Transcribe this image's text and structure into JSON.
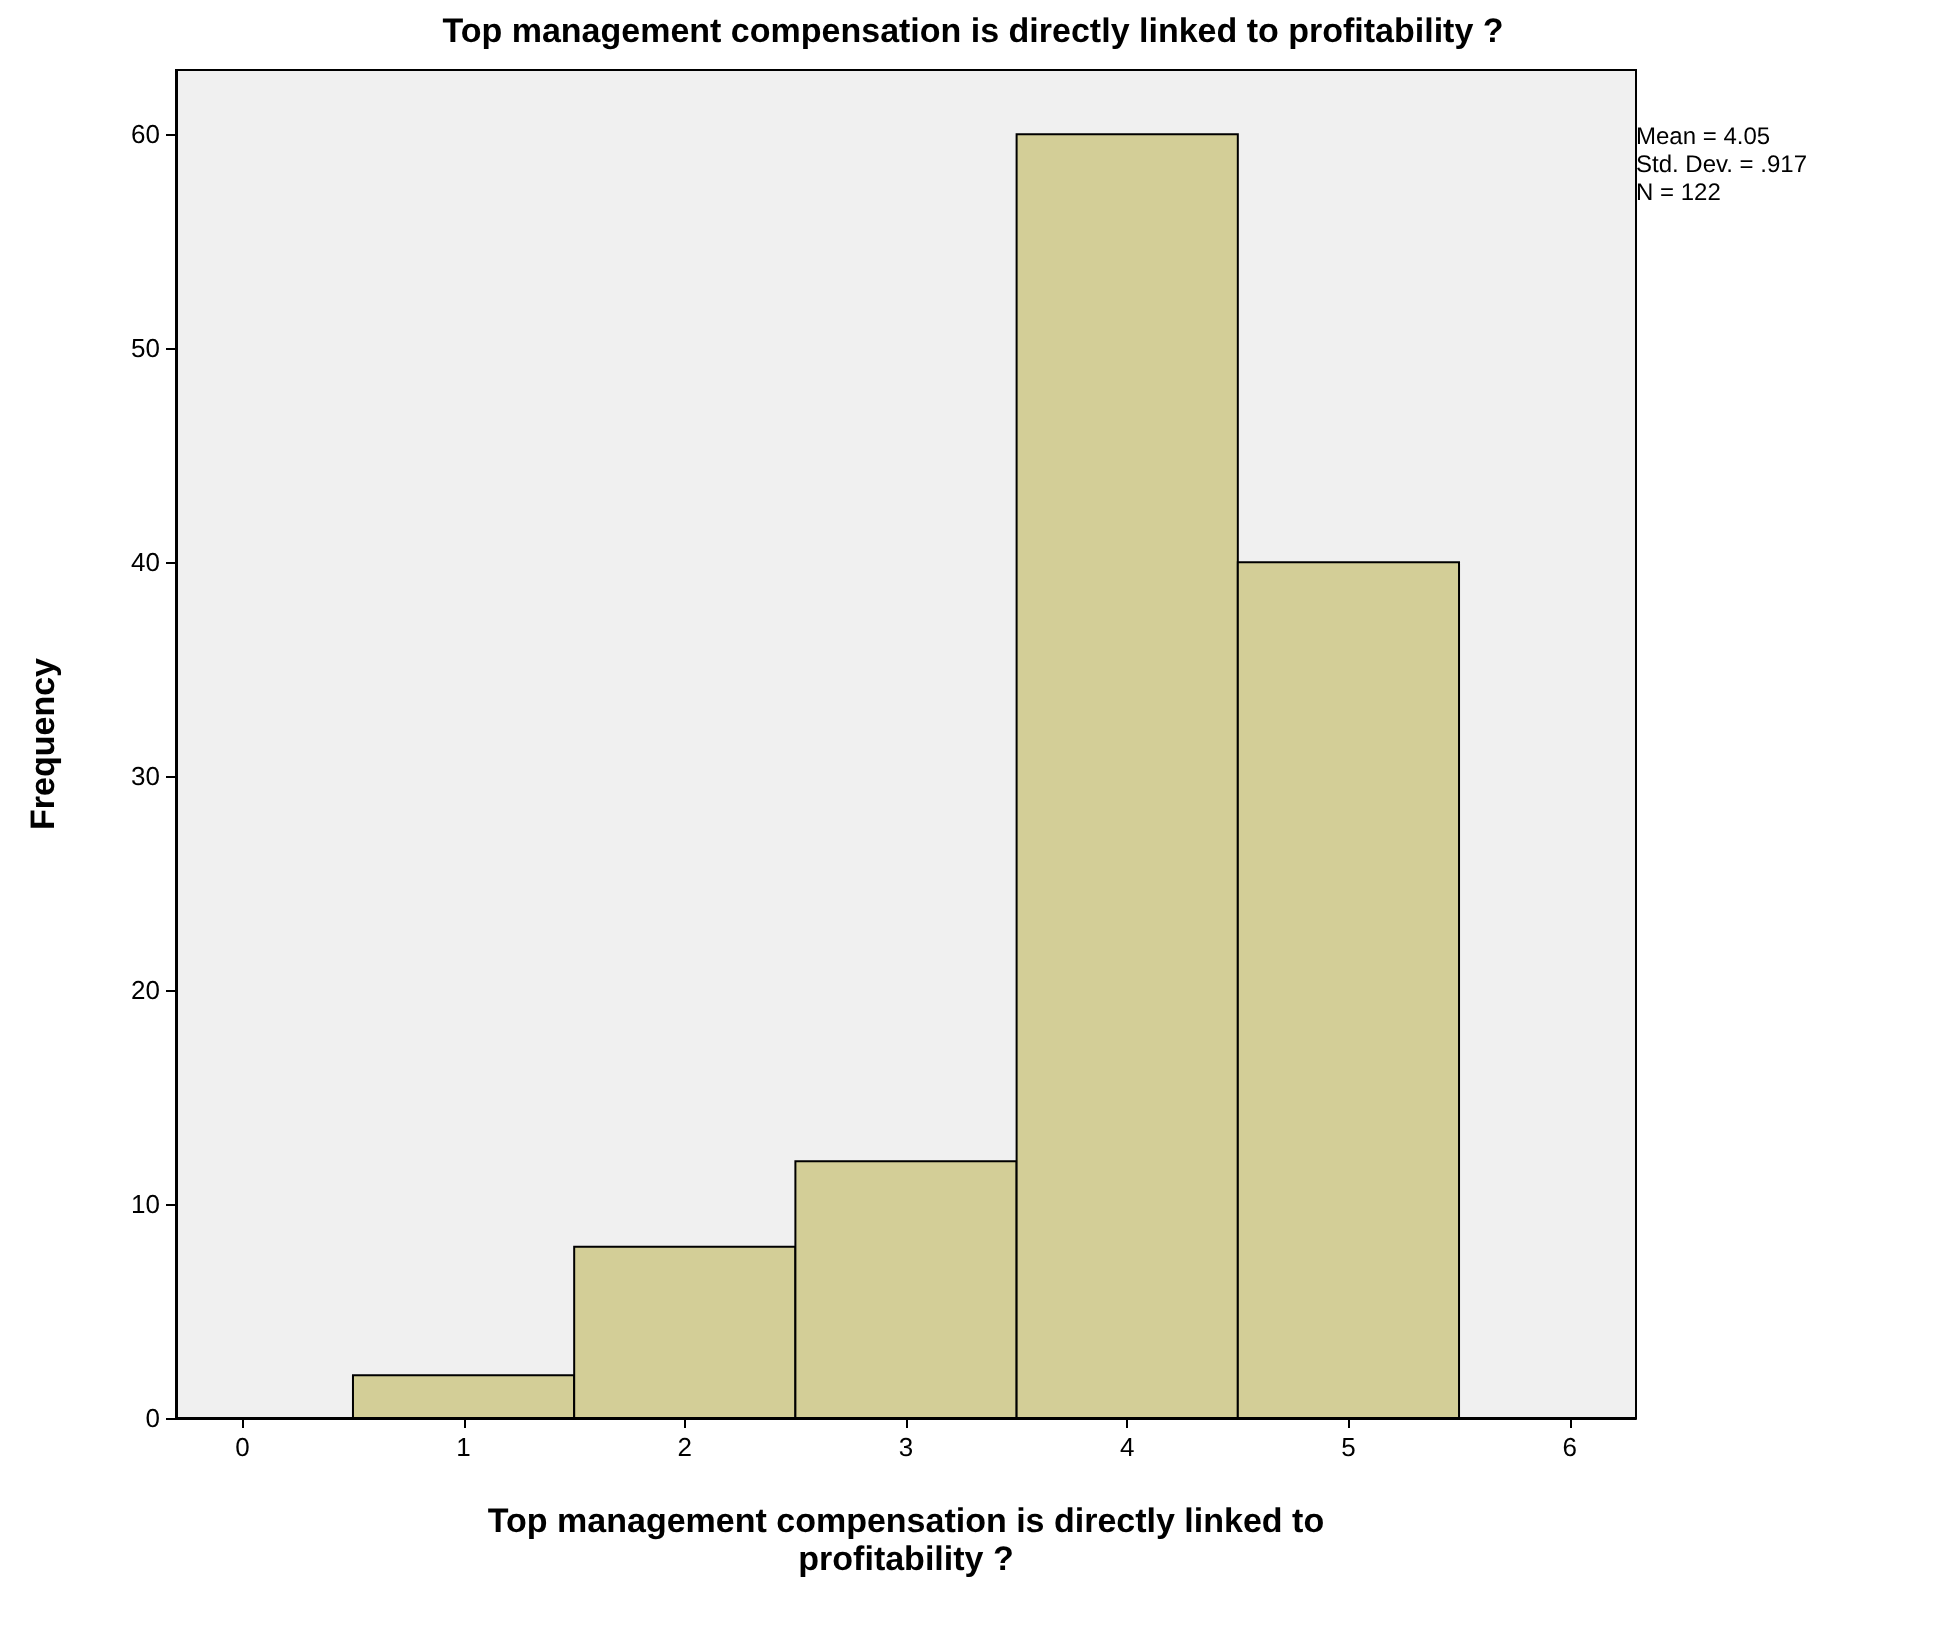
{
  "chart_data": {
    "type": "histogram",
    "title": "Top management compensation is directly linked to profitability ?",
    "xlabel": "Top management compensation is directly linked to profitability ?",
    "ylabel": "Frequency",
    "bins": [
      0.5,
      1.5,
      2.5,
      3.5,
      4.5,
      5.5
    ],
    "values": [
      2,
      8,
      12,
      60,
      40
    ],
    "color": "#d3ce97",
    "xlim": [
      -0.3,
      6.3
    ],
    "xticks": [
      0,
      1,
      2,
      3,
      4,
      5,
      6
    ],
    "ylim": [
      0,
      63
    ],
    "yticks": [
      0,
      10,
      20,
      30,
      40,
      50,
      60
    ],
    "annotations": [
      "Mean = 4.05",
      "Std. Dev. = .917",
      "N = 122"
    ]
  }
}
